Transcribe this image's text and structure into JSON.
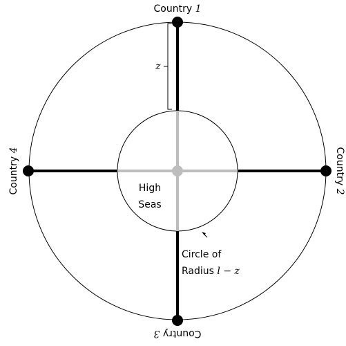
{
  "countries": [
    {
      "prefix": "Country",
      "number": "1"
    },
    {
      "prefix": "Country",
      "number": "2"
    },
    {
      "prefix": "Country",
      "number": "3"
    },
    {
      "prefix": "Country",
      "number": "4"
    }
  ],
  "z_label": "z",
  "high_seas": [
    "High",
    "Seas"
  ],
  "circle_label": {
    "line1": "Circle of",
    "line2_prefix": "Radius",
    "line2_math": "l − z"
  }
}
